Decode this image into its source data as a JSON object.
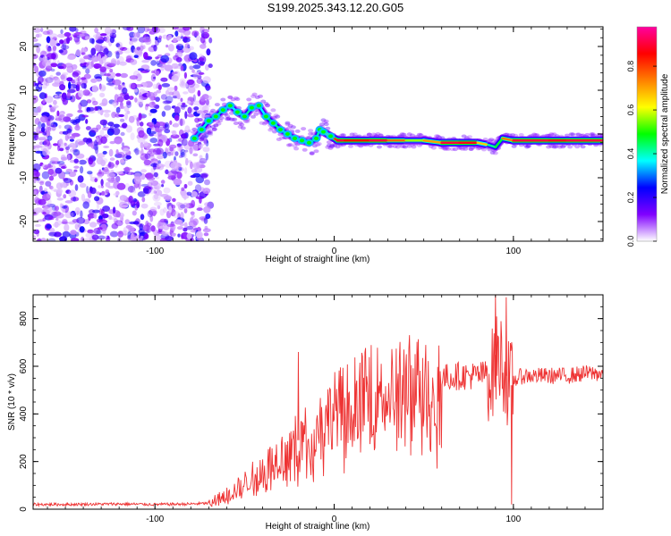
{
  "title": "S199.2025.343.12.20.G05",
  "chart_data": [
    {
      "type": "heatmap",
      "xlabel": "Height of straight line (km)",
      "ylabel": "Frequency (Hz)",
      "xlim": [
        -168,
        150
      ],
      "ylim": [
        -24.5,
        24.5
      ],
      "x_ticks": [
        -100,
        0,
        100
      ],
      "x_tick_labels": [
        "-100",
        "0",
        "100"
      ],
      "y_ticks": [
        -20,
        -10,
        0,
        10,
        20
      ],
      "y_tick_labels": [
        "-20",
        "-10",
        "0",
        "10",
        "20"
      ],
      "grid": false,
      "colorbar": {
        "label": "Normalized spectral amplitude",
        "range": [
          0,
          0.98
        ],
        "ticks": [
          0.0,
          0.2,
          0.4,
          0.6,
          0.8
        ],
        "tick_labels": [
          "0.0",
          "0.2",
          "0.4",
          "0.6",
          "0.8"
        ],
        "colormap": [
          "#ffffff",
          "#8000ff",
          "#0000ff",
          "#00ffff",
          "#00ff00",
          "#ffff00",
          "#ff8000",
          "#ff0000",
          "#ff00a0"
        ]
      },
      "noise_region_x": [
        -168,
        -75
      ],
      "ridge": {
        "x": [
          -78,
          -74,
          -70,
          -66,
          -62,
          -58,
          -54,
          -50,
          -46,
          -42,
          -38,
          -34,
          -30,
          -26,
          -22,
          -18,
          -14,
          -10,
          -8,
          -6,
          -2,
          2,
          6,
          10,
          20,
          30,
          40,
          50,
          60,
          70,
          80,
          86,
          90,
          94,
          100,
          110,
          120,
          130,
          140,
          150
        ],
        "y": [
          -1,
          1,
          3,
          4,
          5.5,
          6.5,
          5,
          4,
          6,
          6.5,
          4,
          2.5,
          1,
          0,
          -1,
          -1.5,
          -2,
          -1,
          1,
          0.5,
          -0.5,
          -1.5,
          -1.5,
          -1.5,
          -1.5,
          -1.5,
          -1.5,
          -1.5,
          -2,
          -2,
          -2,
          -2.5,
          -3,
          -1,
          -1.5,
          -1.5,
          -1.5,
          -1.5,
          -1.5,
          -1.5
        ],
        "amplitude": [
          0.3,
          0.35,
          0.45,
          0.5,
          0.4,
          0.3,
          0.45,
          0.5,
          0.35,
          0.3,
          0.45,
          0.5,
          0.4,
          0.45,
          0.4,
          0.45,
          0.5,
          0.45,
          0.4,
          0.6,
          0.7,
          0.95,
          0.9,
          0.85,
          0.9,
          0.95,
          0.6,
          0.55,
          0.9,
          0.95,
          0.85,
          0.5,
          0.35,
          0.6,
          0.9,
          0.95,
          0.9,
          0.9,
          0.95,
          0.9
        ]
      }
    },
    {
      "type": "line",
      "xlabel": "Height of straight line (km)",
      "ylabel": "SNR (10 * v/v)",
      "xlim": [
        -168,
        150
      ],
      "ylim": [
        0,
        900
      ],
      "x_ticks": [
        -100,
        0,
        100
      ],
      "x_tick_labels": [
        "-100",
        "0",
        "100"
      ],
      "y_ticks": [
        0,
        200,
        400,
        600,
        800
      ],
      "y_tick_labels": [
        "0",
        "200",
        "400",
        "600",
        "800"
      ],
      "grid": false,
      "series": [
        {
          "color": "#ee3333",
          "x": [
            -168,
            -150,
            -120,
            -100,
            -80,
            -70,
            -65,
            -60,
            -55,
            -50,
            -45,
            -40,
            -35,
            -30,
            -25,
            -20,
            -15,
            -10,
            -5,
            0,
            10,
            20,
            30,
            40,
            50,
            60,
            70,
            80,
            85,
            88,
            90,
            92,
            94,
            96,
            98,
            100,
            105,
            110,
            120,
            130,
            140,
            150
          ],
          "y": [
            20,
            20,
            22,
            20,
            22,
            25,
            40,
            60,
            80,
            110,
            140,
            170,
            200,
            230,
            260,
            290,
            320,
            350,
            380,
            420,
            470,
            500,
            520,
            540,
            540,
            550,
            560,
            560,
            570,
            560,
            620,
            640,
            620,
            560,
            500,
            540,
            560,
            560,
            560,
            560,
            570,
            570
          ]
        }
      ],
      "spikes": [
        {
          "x": -20,
          "y": 660
        },
        {
          "x": 90,
          "y": 900
        },
        {
          "x": 96,
          "y": 890
        },
        {
          "x": 99,
          "y": 20
        }
      ]
    }
  ]
}
